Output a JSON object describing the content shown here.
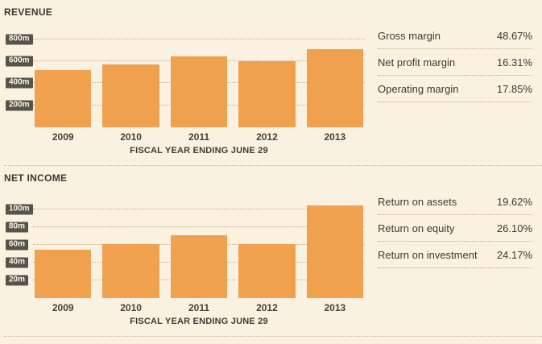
{
  "colors": {
    "background": "#fbf1e0",
    "bar": "#efa14e",
    "ytick_chip_bg": "#56534a",
    "ytick_chip_text": "#fdf6ec",
    "text": "#3e3931",
    "dotted_line": "#c7ab89"
  },
  "chart_data": [
    {
      "type": "bar",
      "title": "REVENUE",
      "categories": [
        "2009",
        "2010",
        "2011",
        "2012",
        "2013"
      ],
      "values": [
        520,
        575,
        645,
        600,
        715
      ],
      "xlabel": "FISCAL YEAR ENDING JUNE 29",
      "ylabel": "",
      "yticks": [
        200,
        400,
        600,
        800
      ],
      "ytick_labels": [
        "200m",
        "400m",
        "600m",
        "800m"
      ],
      "ylim": [
        0,
        880
      ],
      "grid": "dotted-horizontal",
      "legend": "none"
    },
    {
      "type": "bar",
      "title": "NET INCOME",
      "categories": [
        "2009",
        "2010",
        "2011",
        "2012",
        "2013"
      ],
      "values": [
        55,
        61,
        71,
        61,
        105
      ],
      "xlabel": "FISCAL YEAR ENDING JUNE 29",
      "ylabel": "",
      "yticks": [
        20,
        40,
        60,
        80,
        100
      ],
      "ytick_labels": [
        "20m",
        "40m",
        "60m",
        "80m",
        "100m"
      ],
      "ylim": [
        0,
        115
      ],
      "grid": "dotted-horizontal",
      "legend": "none"
    }
  ],
  "panels": [
    {
      "rows": [
        {
          "label": "Gross margin",
          "value": "48.67%"
        },
        {
          "label": "Net profit margin",
          "value": "16.31%"
        },
        {
          "label": "Operating margin",
          "value": "17.85%"
        }
      ]
    },
    {
      "rows": [
        {
          "label": "Return on assets",
          "value": "19.62%"
        },
        {
          "label": "Return on equity",
          "value": "26.10%"
        },
        {
          "label": "Return on investment",
          "value": "24.17%"
        }
      ]
    }
  ]
}
